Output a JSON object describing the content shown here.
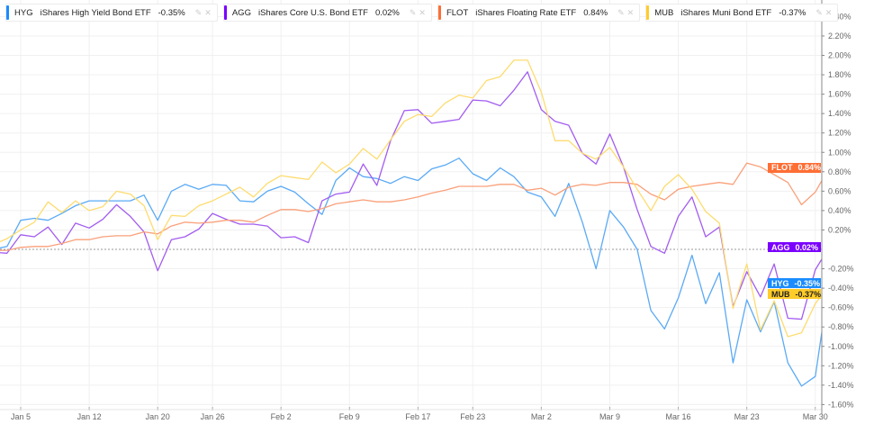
{
  "legend": [
    {
      "symbol": "HYG",
      "name": "iShares High Yield Bond ETF",
      "change": "-0.35%"
    },
    {
      "symbol": "AGG",
      "name": "iShares Core U.S. Bond ETF",
      "change": "0.02%"
    },
    {
      "symbol": "FLOT",
      "name": "iShares Floating Rate ETF",
      "change": "0.84%"
    },
    {
      "symbol": "MUB",
      "name": "iShares Muni Bond ETF",
      "change": "-0.37%"
    }
  ],
  "chart_data": {
    "type": "line",
    "title": "",
    "xlabel": "",
    "ylabel": "",
    "ylim": [
      -1.6,
      2.4
    ],
    "y_ticks": [
      "2.40%",
      "2.20%",
      "2.00%",
      "1.80%",
      "1.60%",
      "1.40%",
      "1.20%",
      "1.00%",
      "0.80%",
      "0.60%",
      "0.40%",
      "0.20%",
      "-0.20%",
      "-0.40%",
      "-0.60%",
      "-0.80%",
      "-1.00%",
      "-1.20%",
      "-1.40%",
      "-1.60%"
    ],
    "y_tick_values": [
      2.4,
      2.2,
      2.0,
      1.8,
      1.6,
      1.4,
      1.2,
      1.0,
      0.8,
      0.6,
      0.4,
      0.2,
      -0.2,
      -0.4,
      -0.6,
      -0.8,
      -1.0,
      -1.2,
      -1.4,
      -1.6
    ],
    "x_ticks": [
      {
        "label": "Jan 5",
        "index": 2
      },
      {
        "label": "Jan 12",
        "index": 7
      },
      {
        "label": "Jan 20",
        "index": 12
      },
      {
        "label": "Jan 26",
        "index": 16
      },
      {
        "label": "Feb 2",
        "index": 21
      },
      {
        "label": "Feb 9",
        "index": 26
      },
      {
        "label": "Feb 17",
        "index": 31
      },
      {
        "label": "Feb 23",
        "index": 35
      },
      {
        "label": "Mar 2",
        "index": 40
      },
      {
        "label": "Mar 9",
        "index": 45
      },
      {
        "label": "Mar 16",
        "index": 50
      },
      {
        "label": "Mar 23",
        "index": 55
      },
      {
        "label": "Mar 30",
        "index": 60
      }
    ],
    "grid": true,
    "legend_placement": "top-left",
    "series": [
      {
        "name": "HYG",
        "color": "#1a8cff",
        "line_color": "#5aaaf5",
        "last_label": "-0.35%",
        "values": [
          0.0,
          0.03,
          0.3,
          0.32,
          0.3,
          0.37,
          0.45,
          0.5,
          0.5,
          0.5,
          0.5,
          0.56,
          0.3,
          0.6,
          0.67,
          0.62,
          0.67,
          0.66,
          0.5,
          0.49,
          0.6,
          0.65,
          0.59,
          0.47,
          0.36,
          0.71,
          0.84,
          0.75,
          0.73,
          0.68,
          0.75,
          0.71,
          0.83,
          0.87,
          0.94,
          0.78,
          0.71,
          0.84,
          0.75,
          0.59,
          0.54,
          0.34,
          0.68,
          0.28,
          -0.2,
          0.4,
          0.23,
          0.0,
          -0.63,
          -0.82,
          -0.5,
          -0.06,
          -0.56,
          -0.24,
          -1.17,
          -0.52,
          -0.85,
          -0.54,
          -1.17,
          -1.41,
          -1.31,
          -0.35
        ]
      },
      {
        "name": "AGG",
        "color": "#7a00ff",
        "line_color": "#a25cf0",
        "last_label": "0.02%",
        "values": [
          -0.03,
          -0.04,
          0.15,
          0.13,
          0.23,
          0.05,
          0.27,
          0.22,
          0.31,
          0.46,
          0.34,
          0.18,
          -0.22,
          0.1,
          0.13,
          0.21,
          0.37,
          0.31,
          0.26,
          0.26,
          0.24,
          0.12,
          0.13,
          0.07,
          0.5,
          0.57,
          0.59,
          0.88,
          0.66,
          1.12,
          1.43,
          1.44,
          1.3,
          1.32,
          1.34,
          1.54,
          1.53,
          1.48,
          1.64,
          1.83,
          1.44,
          1.32,
          1.28,
          0.99,
          0.88,
          1.19,
          0.85,
          0.41,
          0.03,
          -0.04,
          0.34,
          0.54,
          0.13,
          0.23,
          -0.59,
          -0.23,
          -0.49,
          -0.15,
          -0.71,
          -0.72,
          -0.21,
          0.02
        ]
      },
      {
        "name": "FLOT",
        "color": "#ff6e35",
        "line_color": "#f9a07a",
        "last_label": "0.84%",
        "values": [
          -0.01,
          -0.01,
          0.02,
          0.03,
          0.03,
          0.06,
          0.1,
          0.1,
          0.13,
          0.14,
          0.14,
          0.18,
          0.16,
          0.24,
          0.28,
          0.27,
          0.28,
          0.3,
          0.3,
          0.28,
          0.35,
          0.41,
          0.41,
          0.39,
          0.42,
          0.47,
          0.49,
          0.51,
          0.49,
          0.49,
          0.51,
          0.54,
          0.58,
          0.61,
          0.65,
          0.65,
          0.65,
          0.67,
          0.67,
          0.61,
          0.63,
          0.56,
          0.64,
          0.67,
          0.66,
          0.69,
          0.69,
          0.67,
          0.57,
          0.51,
          0.62,
          0.65,
          0.67,
          0.69,
          0.67,
          0.89,
          0.85,
          0.77,
          0.69,
          0.46,
          0.59,
          0.84
        ]
      },
      {
        "name": "MUB",
        "color": "#ffcc29",
        "line_color": "#fddc70",
        "last_label": "-0.37%",
        "values": [
          0.05,
          0.11,
          0.2,
          0.28,
          0.49,
          0.38,
          0.5,
          0.4,
          0.44,
          0.6,
          0.57,
          0.45,
          0.1,
          0.35,
          0.34,
          0.45,
          0.5,
          0.57,
          0.64,
          0.54,
          0.68,
          0.76,
          0.74,
          0.72,
          0.9,
          0.79,
          0.88,
          1.04,
          0.93,
          1.13,
          1.32,
          1.39,
          1.37,
          1.51,
          1.59,
          1.56,
          1.74,
          1.78,
          1.95,
          1.95,
          1.62,
          1.12,
          1.12,
          0.99,
          0.93,
          1.05,
          0.85,
          0.62,
          0.4,
          0.65,
          0.77,
          0.62,
          0.39,
          0.27,
          -0.61,
          -0.15,
          -0.83,
          -0.53,
          -0.9,
          -0.86,
          -0.56,
          -0.37
        ]
      }
    ]
  }
}
